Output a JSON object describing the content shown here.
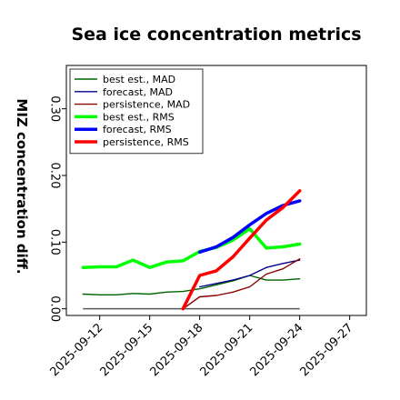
{
  "chart_data": {
    "type": "line",
    "title": "Sea ice concentration metrics",
    "xlabel": "",
    "ylabel": "MIZ concentration diff.",
    "x_ticks": [
      "2025-09-12",
      "2025-09-15",
      "2025-09-18",
      "2025-09-21",
      "2025-09-24",
      "2025-09-27"
    ],
    "highlighted_tick": "2025-09-18",
    "highlight_color": "#2ca02c",
    "xlim": [
      "2025-09-10",
      "2025-09-28"
    ],
    "ylim": [
      -0.01,
      0.365
    ],
    "y_ticks": [
      "0.00",
      "0.10",
      "0.20",
      "0.30"
    ],
    "grid": false,
    "legend_position": "top-left",
    "series": [
      {
        "name": "best est., MAD",
        "color": "#006400",
        "style": "thin",
        "x": [
          "2025-09-11",
          "2025-09-12",
          "2025-09-13",
          "2025-09-14",
          "2025-09-15",
          "2025-09-16",
          "2025-09-17",
          "2025-09-18",
          "2025-09-19",
          "2025-09-20",
          "2025-09-21",
          "2025-09-22",
          "2025-09-23",
          "2025-09-24"
        ],
        "y": [
          0.022,
          0.021,
          0.021,
          0.023,
          0.022,
          0.025,
          0.026,
          0.03,
          0.036,
          0.042,
          0.05,
          0.043,
          0.043,
          0.045
        ]
      },
      {
        "name": "forecast,  MAD",
        "color": "#00008b",
        "style": "thin",
        "x": [
          "2025-09-18",
          "2025-09-19",
          "2025-09-20",
          "2025-09-21",
          "2025-09-22",
          "2025-09-23",
          "2025-09-24"
        ],
        "y": [
          0.033,
          0.038,
          0.043,
          0.05,
          0.062,
          0.068,
          0.073
        ]
      },
      {
        "name": "persistence, MAD",
        "color": "#8b0000",
        "style": "thin",
        "x": [
          "2025-09-17",
          "2025-09-18",
          "2025-09-19",
          "2025-09-20",
          "2025-09-21",
          "2025-09-22",
          "2025-09-23",
          "2025-09-24"
        ],
        "y": [
          0.0,
          0.018,
          0.02,
          0.025,
          0.033,
          0.052,
          0.06,
          0.075
        ]
      },
      {
        "name": "best est., RMS",
        "color": "#00ff00",
        "style": "thick",
        "x": [
          "2025-09-11",
          "2025-09-12",
          "2025-09-13",
          "2025-09-14",
          "2025-09-15",
          "2025-09-16",
          "2025-09-17",
          "2025-09-18",
          "2025-09-19",
          "2025-09-20",
          "2025-09-21",
          "2025-09-22",
          "2025-09-23",
          "2025-09-24"
        ],
        "y": [
          0.062,
          0.063,
          0.063,
          0.073,
          0.062,
          0.07,
          0.072,
          0.086,
          0.092,
          0.103,
          0.12,
          0.091,
          0.093,
          0.097
        ]
      },
      {
        "name": "forecast,  RMS",
        "color": "#0000ff",
        "style": "thick",
        "x": [
          "2025-09-18",
          "2025-09-19",
          "2025-09-20",
          "2025-09-21",
          "2025-09-22",
          "2025-09-23",
          "2025-09-24"
        ],
        "y": [
          0.085,
          0.093,
          0.107,
          0.126,
          0.143,
          0.155,
          0.162
        ]
      },
      {
        "name": "persistence, RMS",
        "color": "#ff0000",
        "style": "thick",
        "x": [
          "2025-09-17",
          "2025-09-18",
          "2025-09-19",
          "2025-09-20",
          "2025-09-21",
          "2025-09-22",
          "2025-09-23",
          "2025-09-24"
        ],
        "y": [
          0.0,
          0.05,
          0.057,
          0.078,
          0.106,
          0.133,
          0.152,
          0.177
        ]
      }
    ],
    "reference_line": {
      "y": 0.0,
      "from": "2025-09-11",
      "to": "2025-09-24",
      "color": "#555555"
    }
  }
}
